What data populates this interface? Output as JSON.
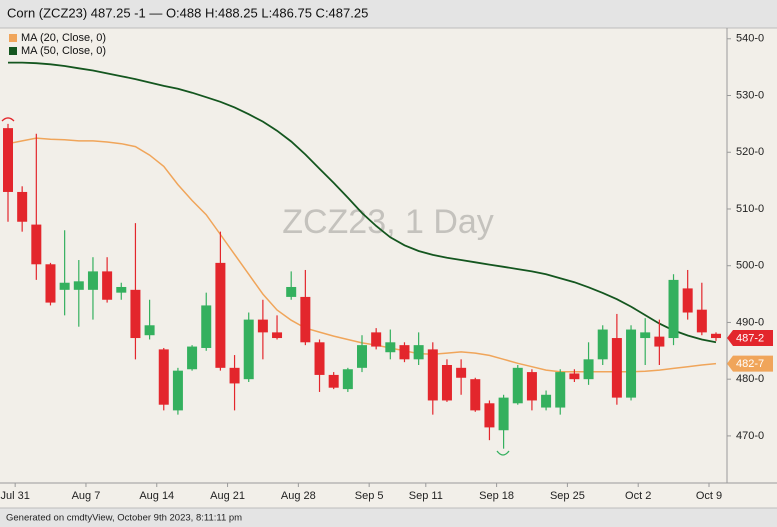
{
  "chart_data": {
    "type": "candlestick",
    "title": "Corn (ZCZ23) 487.25 -1 — O:488 H:488.25 L:486.75 C:487.25",
    "watermark": "ZCZ23, 1 Day",
    "footer": "Generated on cmdtyView, October 9th 2023, 8:11:11 pm",
    "categories": [
      null,
      "Jul 31",
      null,
      null,
      null,
      null,
      "Aug 7",
      null,
      null,
      null,
      null,
      "Aug 14",
      null,
      null,
      null,
      null,
      "Aug 21",
      null,
      null,
      null,
      null,
      "Aug 28",
      null,
      null,
      null,
      null,
      "Sep 5",
      null,
      null,
      null,
      "Sep 11",
      null,
      null,
      null,
      null,
      "Sep 18",
      null,
      null,
      null,
      null,
      "Sep 25",
      null,
      null,
      null,
      null,
      "Oct 2",
      null,
      null,
      null,
      null,
      "Oct 9"
    ],
    "open": [
      524.25,
      513,
      507.25,
      500.25,
      495.75,
      495.75,
      495.75,
      499,
      495.25,
      495.75,
      487.75,
      485.25,
      474.5,
      481.75,
      485.5,
      500.5,
      482,
      480,
      490.5,
      488.25,
      494.5,
      494.5,
      486.5,
      480.75,
      478.25,
      482,
      488.25,
      484.75,
      486,
      483.5,
      485.25,
      482.5,
      482,
      480,
      475.75,
      471,
      475.75,
      481.25,
      475,
      475,
      481,
      480,
      483.5,
      487.25,
      476.75,
      487.25,
      487.5,
      487.25,
      496,
      492.25,
      488
    ],
    "high": [
      525,
      514,
      523.25,
      500.5,
      506.25,
      501,
      501.5,
      501.5,
      497,
      507.5,
      494,
      485.5,
      482,
      486,
      495.25,
      506,
      484.25,
      491.75,
      494,
      491.25,
      499,
      499.25,
      487,
      481.25,
      482,
      487.75,
      489,
      488.75,
      486.5,
      488.25,
      486.5,
      483.5,
      483.5,
      480.25,
      476.25,
      477.25,
      482.5,
      481.75,
      478,
      481.75,
      481.75,
      486.5,
      489.5,
      491.5,
      489.5,
      490.75,
      490.5,
      498.5,
      499.25,
      497,
      488.25
    ],
    "low": [
      507.75,
      506,
      497.5,
      493,
      491.25,
      489.25,
      490.5,
      493.5,
      494,
      483.5,
      487,
      474.5,
      473.75,
      481.5,
      485,
      481.5,
      474.5,
      479.5,
      483.5,
      487,
      494,
      486,
      477.75,
      478.25,
      477.75,
      481.25,
      485.25,
      483.5,
      483,
      482.5,
      473.75,
      476,
      477.25,
      474.25,
      469.25,
      467.75,
      475.5,
      474.5,
      474.5,
      473.75,
      479.5,
      479,
      482.5,
      475.5,
      476.25,
      482.5,
      482.5,
      486,
      490.5,
      487.75,
      486.75
    ],
    "close": [
      513,
      507.75,
      500.25,
      493.5,
      497,
      497.25,
      499,
      494,
      496.25,
      487.25,
      489.5,
      475.5,
      481.5,
      485.75,
      493,
      482,
      479.25,
      490.5,
      488.25,
      487.25,
      496.25,
      486.5,
      480.75,
      478.5,
      481.75,
      486,
      485.75,
      486.5,
      483.5,
      486,
      476.25,
      476.25,
      480.25,
      474.5,
      471.5,
      476.75,
      482,
      476.25,
      477.25,
      481.25,
      480,
      483.5,
      488.75,
      476.75,
      488.75,
      488.25,
      485.75,
      497.5,
      491.75,
      488.25,
      487.25
    ],
    "up_color": "#34b05e",
    "down_color": "#e3262c",
    "last_label": "487-2",
    "overlays": [
      {
        "name": "MA (20, Close, 0)",
        "color": "#f0a55a",
        "last_label": "482-7",
        "values": [
          521.5,
          522,
          522.5,
          522.3,
          522.2,
          522,
          522,
          521.8,
          521.5,
          521,
          519.5,
          517.5,
          514.3,
          511.5,
          509,
          505.5,
          502,
          498.5,
          495,
          492.2,
          490.4,
          489,
          488.3,
          487.6,
          487,
          486.4,
          486,
          485.5,
          485,
          484.5,
          484.4,
          484.6,
          484.8,
          484.6,
          484.2,
          483.5,
          482.8,
          482.2,
          481.6,
          481.3,
          481.3,
          481.3,
          481.3,
          481.3,
          481.3,
          481.4,
          481.6,
          481.9,
          482.2,
          482.5,
          482.75
        ]
      },
      {
        "name": "MA (50, Close, 0)",
        "color": "#14561f",
        "values": [
          535.8,
          535.8,
          535.7,
          535.5,
          535.2,
          534.8,
          534.4,
          533.9,
          533.4,
          532.9,
          532.3,
          531.7,
          531.2,
          530.5,
          529.7,
          528.9,
          527.9,
          526.7,
          525.4,
          523.8,
          521.9,
          519.6,
          517.1,
          514.6,
          512,
          509.3,
          507,
          505,
          503.6,
          502.6,
          501.9,
          501.4,
          501,
          500.6,
          500.2,
          499.8,
          499.4,
          499,
          498.5,
          497.8,
          497.1,
          496.2,
          495.2,
          494.1,
          492.8,
          491.3,
          489.8,
          488.6,
          487.7,
          487,
          486.5
        ]
      }
    ],
    "ylim": [
      461.7,
      541.9
    ],
    "yticks": [
      {
        "value": 470,
        "label": "470-0"
      },
      {
        "value": 480,
        "label": "480-0"
      },
      {
        "value": 490,
        "label": "490-0"
      },
      {
        "value": 500,
        "label": "500-0"
      },
      {
        "value": 510,
        "label": "510-0"
      },
      {
        "value": 520,
        "label": "520-0"
      },
      {
        "value": 530,
        "label": "530-0"
      },
      {
        "value": 540,
        "label": "540-0"
      }
    ]
  }
}
